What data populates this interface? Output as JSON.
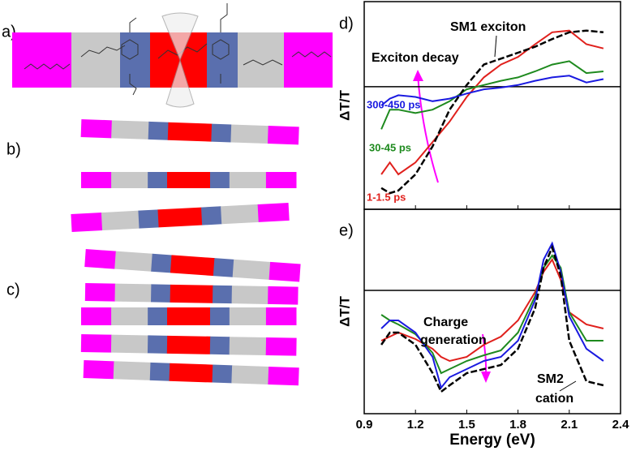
{
  "panels": [
    "a)",
    "b)",
    "c)"
  ],
  "chart_data": [
    {
      "type": "line",
      "panel": "d)",
      "ylabel": "ΔT/T",
      "annotations": [
        "SM1 exciton",
        "Exciton decay"
      ],
      "xlim": [
        0.9,
        2.4
      ],
      "xticks": [
        0.9,
        1.2,
        1.5,
        1.8,
        2.1,
        2.4
      ],
      "ylim": [
        -1.44,
        1
      ],
      "x": [
        1.0,
        1.05,
        1.1,
        1.2,
        1.3,
        1.4,
        1.5,
        1.6,
        1.7,
        1.8,
        1.9,
        2.0,
        2.1,
        2.2,
        2.3
      ],
      "series": [
        {
          "name": "1-1.5 ps",
          "color": "#e0201c",
          "values": [
            -1.03,
            -0.89,
            -1.03,
            -0.89,
            -0.65,
            -0.41,
            -0.12,
            0.11,
            0.26,
            0.35,
            0.5,
            0.64,
            0.66,
            0.5,
            0.45
          ]
        },
        {
          "name": "30-45 ps",
          "color": "#1e8a1e",
          "values": [
            -0.5,
            -0.27,
            -0.27,
            -0.31,
            -0.27,
            -0.17,
            -0.03,
            0.02,
            0.07,
            0.11,
            0.18,
            0.26,
            0.3,
            0.16,
            0.18
          ]
        },
        {
          "name": "300-450 ps",
          "color": "#1a1ae0",
          "values": [
            -0.22,
            -0.14,
            -0.1,
            -0.12,
            -0.17,
            -0.14,
            -0.08,
            -0.03,
            -0.01,
            0.02,
            0.07,
            0.11,
            0.13,
            0.05,
            0.09
          ]
        },
        {
          "color": "#000000",
          "style": "dashed",
          "values": [
            -1.19,
            -1.25,
            -1.22,
            -1.03,
            -0.7,
            -0.27,
            0.02,
            0.26,
            0.33,
            0.4,
            0.47,
            0.56,
            0.64,
            0.66,
            0.64
          ]
        }
      ]
    },
    {
      "type": "line",
      "panel": "e)",
      "ylabel": "ΔT/T",
      "xlabel": "Energy (eV)",
      "annotations": [
        "Charge",
        "generation",
        "SM2",
        "cation"
      ],
      "xlim": [
        0.9,
        2.4
      ],
      "xticks": [
        0.9,
        1.2,
        1.5,
        1.8,
        2.1,
        2.4
      ],
      "ylim": [
        -1.52,
        1
      ],
      "x": [
        1.0,
        1.05,
        1.1,
        1.2,
        1.3,
        1.35,
        1.4,
        1.5,
        1.6,
        1.7,
        1.8,
        1.9,
        1.95,
        2.0,
        2.05,
        2.1,
        2.2,
        2.3
      ],
      "series": [
        {
          "color": "#e0201c",
          "values": [
            -0.62,
            -0.57,
            -0.52,
            -0.6,
            -0.72,
            -0.82,
            -0.87,
            -0.82,
            -0.67,
            -0.57,
            -0.37,
            -0.02,
            0.23,
            0.38,
            0.13,
            -0.27,
            -0.42,
            -0.47
          ]
        },
        {
          "color": "#1e8a1e",
          "values": [
            -0.3,
            -0.37,
            -0.42,
            -0.54,
            -0.77,
            -1.02,
            -0.97,
            -0.87,
            -0.8,
            -0.74,
            -0.52,
            -0.07,
            0.28,
            0.43,
            0.28,
            -0.27,
            -0.62,
            -0.62
          ]
        },
        {
          "color": "#1a1ae0",
          "values": [
            -0.47,
            -0.37,
            -0.37,
            -0.52,
            -0.82,
            -1.2,
            -1.07,
            -0.97,
            -0.87,
            -0.82,
            -0.62,
            -0.12,
            0.38,
            0.58,
            0.23,
            -0.32,
            -0.72,
            -0.87
          ]
        },
        {
          "color": "#000000",
          "style": "dashed",
          "values": [
            -0.67,
            -0.52,
            -0.52,
            -0.67,
            -1.02,
            -1.25,
            -1.17,
            -1.02,
            -0.97,
            -0.92,
            -0.72,
            -0.22,
            0.28,
            0.53,
            0.18,
            -0.62,
            -1.12,
            -1.17
          ]
        }
      ]
    }
  ]
}
